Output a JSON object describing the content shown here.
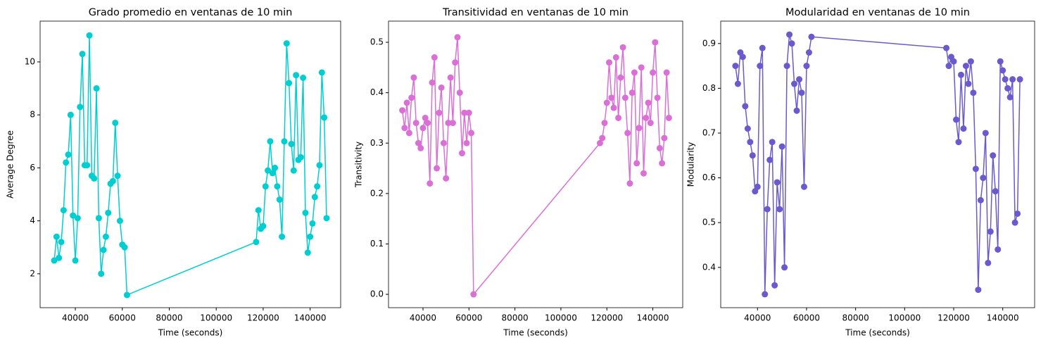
{
  "chart_data": [
    {
      "type": "line",
      "title": "Grado promedio en ventanas de 10 min",
      "x_label": "Time (seconds)",
      "y_label": "Average Degree",
      "color": "#00ced1",
      "x": [
        31000,
        32000,
        33000,
        34000,
        35000,
        36000,
        37000,
        38000,
        39000,
        40000,
        41000,
        42000,
        43000,
        44000,
        45000,
        46000,
        47000,
        48000,
        49000,
        50000,
        51000,
        52000,
        53000,
        54000,
        55000,
        56000,
        57000,
        58000,
        59000,
        60000,
        61000,
        62000,
        117000,
        118000,
        119000,
        120000,
        121000,
        122000,
        123000,
        124000,
        125000,
        126000,
        127000,
        128000,
        129000,
        130000,
        131000,
        132000,
        133000,
        134000,
        135000,
        136000,
        137000,
        138000,
        139000,
        140000,
        141000,
        142000,
        143000,
        144000,
        145000,
        146000,
        147000
      ],
      "values": [
        2.5,
        3.4,
        2.6,
        3.2,
        4.4,
        6.2,
        6.5,
        8.0,
        4.2,
        2.5,
        4.1,
        8.3,
        10.3,
        6.1,
        6.1,
        11.0,
        5.7,
        5.6,
        9.0,
        4.1,
        2.0,
        2.9,
        3.4,
        4.3,
        5.4,
        5.5,
        7.7,
        5.7,
        4.0,
        3.1,
        3.0,
        1.2,
        3.2,
        4.4,
        3.7,
        3.8,
        5.3,
        5.9,
        7.0,
        5.8,
        6.0,
        5.3,
        4.8,
        3.4,
        7.0,
        10.7,
        9.2,
        6.9,
        5.9,
        9.5,
        6.3,
        6.4,
        9.4,
        4.3,
        2.8,
        3.4,
        3.9,
        4.9,
        5.3,
        6.1,
        9.6,
        7.9,
        4.1
      ],
      "xlim": [
        25000,
        153000
      ],
      "xticks": [
        40000,
        60000,
        80000,
        100000,
        120000,
        140000
      ],
      "ylim": [
        0.72,
        11.54
      ],
      "yticks": [
        2,
        4,
        6,
        8,
        10
      ]
    },
    {
      "type": "line",
      "title": "Transitividad en ventanas de 10 min",
      "x_label": "Time (seconds)",
      "y_label": "Transitivity",
      "color": "#da70d6",
      "x": [
        31000,
        32000,
        33000,
        34000,
        35000,
        36000,
        37000,
        38000,
        39000,
        40000,
        41000,
        42000,
        43000,
        44000,
        45000,
        46000,
        47000,
        48000,
        49000,
        50000,
        51000,
        52000,
        53000,
        54000,
        55000,
        56000,
        57000,
        58000,
        59000,
        60000,
        61000,
        62000,
        117000,
        118000,
        119000,
        120000,
        121000,
        122000,
        123000,
        124000,
        125000,
        126000,
        127000,
        128000,
        129000,
        130000,
        131000,
        132000,
        133000,
        134000,
        135000,
        136000,
        137000,
        138000,
        139000,
        140000,
        141000,
        142000,
        143000,
        144000,
        145000,
        146000,
        147000
      ],
      "values": [
        0.365,
        0.33,
        0.38,
        0.32,
        0.39,
        0.43,
        0.34,
        0.3,
        0.29,
        0.33,
        0.35,
        0.34,
        0.22,
        0.42,
        0.47,
        0.25,
        0.36,
        0.41,
        0.3,
        0.23,
        0.34,
        0.43,
        0.34,
        0.46,
        0.51,
        0.4,
        0.28,
        0.36,
        0.3,
        0.36,
        0.32,
        0.0,
        0.3,
        0.31,
        0.34,
        0.38,
        0.46,
        0.39,
        0.37,
        0.47,
        0.35,
        0.43,
        0.49,
        0.39,
        0.32,
        0.22,
        0.4,
        0.44,
        0.26,
        0.33,
        0.45,
        0.24,
        0.35,
        0.38,
        0.34,
        0.44,
        0.5,
        0.39,
        0.29,
        0.26,
        0.31,
        0.44,
        0.35
      ],
      "xlim": [
        25000,
        153000
      ],
      "xticks": [
        40000,
        60000,
        80000,
        100000,
        120000,
        140000
      ],
      "ylim": [
        -0.0265,
        0.542
      ],
      "yticks": [
        {
          "value": 0,
          "label": "0.0"
        },
        0.1,
        0.2,
        0.3,
        0.4,
        0.5
      ]
    },
    {
      "type": "line",
      "title": "Modularidad en ventanas de 10 min",
      "x_label": "Time (seconds)",
      "y_label": "Modularity",
      "color": "#6a5acd",
      "x": [
        31000,
        32000,
        33000,
        34000,
        35000,
        36000,
        37000,
        38000,
        39000,
        40000,
        41000,
        42000,
        43000,
        44000,
        45000,
        46000,
        47000,
        48000,
        49000,
        50000,
        51000,
        52000,
        53000,
        54000,
        55000,
        56000,
        57000,
        58000,
        59000,
        60000,
        61000,
        62000,
        117000,
        118000,
        119000,
        120000,
        121000,
        122000,
        123000,
        124000,
        125000,
        126000,
        127000,
        128000,
        129000,
        130000,
        131000,
        132000,
        133000,
        134000,
        135000,
        136000,
        137000,
        138000,
        139000,
        140000,
        141000,
        142000,
        143000,
        144000,
        145000,
        146000,
        147000
      ],
      "values": [
        0.85,
        0.81,
        0.88,
        0.87,
        0.76,
        0.71,
        0.68,
        0.65,
        0.57,
        0.58,
        0.85,
        0.89,
        0.34,
        0.53,
        0.64,
        0.68,
        0.36,
        0.59,
        0.53,
        0.67,
        0.4,
        0.85,
        0.92,
        0.9,
        0.81,
        0.75,
        0.82,
        0.79,
        0.58,
        0.85,
        0.88,
        0.915,
        0.89,
        0.85,
        0.87,
        0.86,
        0.73,
        0.68,
        0.83,
        0.71,
        0.85,
        0.81,
        0.86,
        0.79,
        0.62,
        0.35,
        0.55,
        0.6,
        0.7,
        0.41,
        0.48,
        0.65,
        0.57,
        0.44,
        0.86,
        0.84,
        0.82,
        0.8,
        0.78,
        0.82,
        0.5,
        0.52,
        0.82
      ],
      "xlim": [
        25000,
        153000
      ],
      "xticks": [
        40000,
        60000,
        80000,
        100000,
        120000,
        140000
      ],
      "ylim": [
        0.31,
        0.95
      ],
      "yticks": [
        0.4,
        0.5,
        0.6,
        0.7,
        0.8,
        0.9
      ]
    }
  ]
}
